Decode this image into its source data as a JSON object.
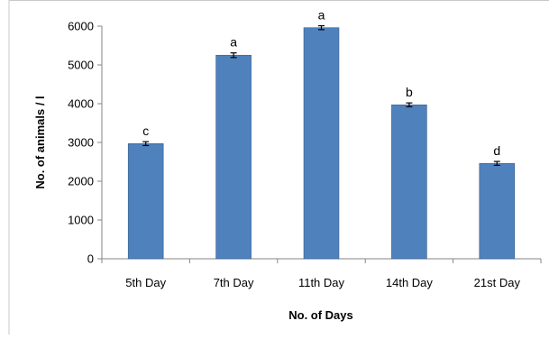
{
  "chart_data": {
    "type": "bar",
    "title": "",
    "xlabel": "No. of Days",
    "ylabel": "No. of animals / l",
    "categories": [
      "5th Day",
      "7th Day",
      "11th Day",
      "14th Day",
      "21st Day"
    ],
    "values": [
      2970,
      5250,
      5960,
      3970,
      2460
    ],
    "error": [
      50,
      60,
      50,
      50,
      50
    ],
    "data_labels": [
      "c",
      "a",
      "a",
      "b",
      "d"
    ],
    "ylim": [
      0,
      6000
    ],
    "yticks": [
      0,
      1000,
      2000,
      3000,
      4000,
      5000,
      6000
    ],
    "grid": false,
    "legend": "none",
    "bar_color": "#4F81BD",
    "bar_edge_color": "#385D8A"
  }
}
